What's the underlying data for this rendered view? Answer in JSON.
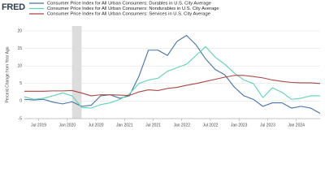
{
  "logo": "FRED",
  "chart_data": {
    "type": "line",
    "y_label": "Percent Change from Year Ago",
    "x": [
      "2019-04",
      "2019-06",
      "2019-08",
      "2019-10",
      "2019-12",
      "2020-02",
      "2020-04",
      "2020-06",
      "2020-08",
      "2020-10",
      "2020-12",
      "2021-02",
      "2021-04",
      "2021-06",
      "2021-08",
      "2021-10",
      "2021-12",
      "2022-02",
      "2022-04",
      "2022-06",
      "2022-08",
      "2022-10",
      "2022-12",
      "2023-02",
      "2023-04",
      "2023-06",
      "2023-08",
      "2023-10",
      "2023-12",
      "2024-02",
      "2024-04",
      "2024-06"
    ],
    "series": [
      {
        "name": "Consumer Price Index for All Urban Consumers: Durables in U.S. City Average",
        "color": "#4572a7",
        "values": [
          0.5,
          0.3,
          0.5,
          -0.3,
          -0.8,
          -0.2,
          -1.5,
          -1.2,
          1.5,
          1.8,
          0.8,
          1.5,
          7,
          14.5,
          14.5,
          13,
          17,
          18.7,
          16,
          12,
          9,
          7.5,
          4,
          1.5,
          0.5,
          -1.5,
          -0.5,
          -0.5,
          -2,
          -1.5,
          -2,
          -3.5
        ]
      },
      {
        "name": "Consumer Price Index for All Urban Consumers: Nondurables in U.S. City Average",
        "color": "#5fd3b8",
        "values": [
          1.2,
          0.5,
          0.8,
          1.5,
          2.3,
          1.5,
          -1.8,
          -2,
          -1,
          -0.5,
          0.5,
          2,
          5,
          6,
          6.5,
          8.5,
          9.5,
          10.5,
          13,
          15.5,
          12.5,
          10.5,
          8,
          6,
          5,
          1,
          3.8,
          2.5,
          0.5,
          0.8,
          1.5,
          1.5
        ]
      },
      {
        "name": "Consumer Price Index for All Urban Consumers: Services in U.S. City Average",
        "color": "#aa4643",
        "values": [
          2.8,
          2.8,
          2.8,
          2.9,
          2.9,
          3,
          2.3,
          1.5,
          1.8,
          1.8,
          1.7,
          1.6,
          2.6,
          3.2,
          3,
          3.6,
          3.9,
          4.5,
          5,
          5.6,
          6.2,
          6.8,
          7.3,
          7.3,
          7,
          6.6,
          6,
          5.6,
          5.3,
          5.2,
          5.2,
          5
        ]
      }
    ],
    "xlim": [
      "2019-04",
      "2024-06"
    ],
    "xticks": [
      {
        "value": "2019-07",
        "label": "Jul 2019"
      },
      {
        "value": "2020-01",
        "label": "Jan 2020"
      },
      {
        "value": "2020-07",
        "label": "Jul 2020"
      },
      {
        "value": "2021-01",
        "label": "Jan 2021"
      },
      {
        "value": "2021-07",
        "label": "Jul 2021"
      },
      {
        "value": "2022-01",
        "label": "Jan 2022"
      },
      {
        "value": "2022-07",
        "label": "Jul 2022"
      },
      {
        "value": "2023-01",
        "label": "Jan 2023"
      },
      {
        "value": "2023-07",
        "label": "Jul 2023"
      },
      {
        "value": "2024-01",
        "label": "Jan 2024"
      }
    ],
    "ylim": [
      -5,
      20
    ],
    "yticks": [
      -5,
      0,
      5,
      10,
      15,
      20
    ],
    "grid": true,
    "recessions": [
      {
        "start": "2020-02",
        "end": "2020-04"
      }
    ]
  }
}
